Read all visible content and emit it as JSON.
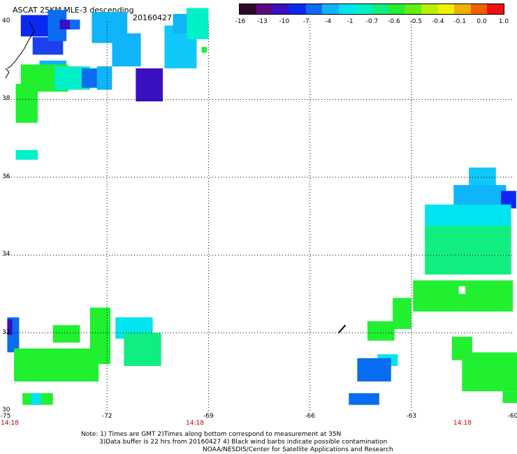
{
  "header": {
    "title": "ASCAT 25KM MLE-3 descending",
    "date": "20160427"
  },
  "colorbar": {
    "colors": [
      "#2a0a2a",
      "#5a0a80",
      "#3a10c0",
      "#0a28f0",
      "#0a6cf0",
      "#10b4f8",
      "#00e4f0",
      "#00f0c8",
      "#10ee80",
      "#20f030",
      "#60f010",
      "#b8f000",
      "#f0f000",
      "#f0b000",
      "#f06000",
      "#f01010"
    ],
    "tick_labels": [
      "-16",
      "-13",
      "-10",
      "-7",
      "-4",
      "-1",
      "-0.7",
      "-0.6",
      "-0.5",
      "-0.4",
      "-0.1",
      "0.0",
      "1.0"
    ]
  },
  "axes": {
    "lat_labels": [
      "40",
      "38",
      "36",
      "34",
      "32",
      "30"
    ],
    "lon_labels": [
      "-75",
      "-72",
      "-69",
      "-66",
      "-63",
      "-60"
    ],
    "time_labels": [
      "14:18",
      "14:18",
      "14:18"
    ]
  },
  "notes": {
    "line1": "Note: 1) Times are GMT 2)Times along bottom correspond to measurement at 35N",
    "line2": "3)Data buffer is 22 hrs from 20160427 4) Black wind barbs indicate possible contamination",
    "line3": "NOAA/NESDIS/Center for Satellite Applications and Research"
  },
  "map_data": {
    "x_range": [
      -75,
      -60
    ],
    "y_range": [
      30,
      40
    ],
    "cells": [
      {
        "lon": -74.55,
        "lat": 39.62,
        "w": 0.95,
        "h": 0.55,
        "v": "#0a28f0"
      },
      {
        "lon": -74.2,
        "lat": 39.15,
        "w": 0.9,
        "h": 0.45,
        "v": "#1a40f0"
      },
      {
        "lon": -73.75,
        "lat": 39.5,
        "w": 0.55,
        "h": 0.8,
        "v": "#0a6cf0"
      },
      {
        "lon": -73.4,
        "lat": 39.8,
        "w": 0.45,
        "h": 0.25,
        "v": "#3a10c0"
      },
      {
        "lon": -73.1,
        "lat": 39.8,
        "w": 0.3,
        "h": 0.25,
        "v": "#0a6cf0"
      },
      {
        "lon": -72.45,
        "lat": 39.45,
        "w": 1.05,
        "h": 0.8,
        "v": "#10b4f8"
      },
      {
        "lon": -71.85,
        "lat": 38.85,
        "w": 0.85,
        "h": 0.85,
        "v": "#10b4f8"
      },
      {
        "lon": -71.15,
        "lat": 37.95,
        "w": 0.8,
        "h": 0.85,
        "v": "#3a10c0"
      },
      {
        "lon": -70.3,
        "lat": 38.8,
        "w": 0.95,
        "h": 1.1,
        "v": "#10c8f8"
      },
      {
        "lon": -70.05,
        "lat": 39.7,
        "w": 0.85,
        "h": 0.5,
        "v": "#10b4f8"
      },
      {
        "lon": -69.65,
        "lat": 39.55,
        "w": 0.65,
        "h": 0.8,
        "v": "#00f0c8"
      },
      {
        "lon": -69.2,
        "lat": 39.2,
        "w": 0.15,
        "h": 0.15,
        "v": "#20f030"
      },
      {
        "lon": -74.0,
        "lat": 38.65,
        "w": 0.8,
        "h": 0.35,
        "v": "#10b4f8"
      },
      {
        "lon": -74.55,
        "lat": 38.2,
        "w": 1.4,
        "h": 0.7,
        "v": "#20f030"
      },
      {
        "lon": -73.55,
        "lat": 38.25,
        "w": 1.05,
        "h": 0.6,
        "v": "#00f0c8"
      },
      {
        "lon": -72.75,
        "lat": 38.3,
        "w": 0.6,
        "h": 0.5,
        "v": "#0a6cf0"
      },
      {
        "lon": -72.3,
        "lat": 38.25,
        "w": 0.45,
        "h": 0.6,
        "v": "#10b4f8"
      },
      {
        "lon": -74.7,
        "lat": 37.4,
        "w": 0.65,
        "h": 1.0,
        "v": "#20f030"
      },
      {
        "lon": -74.7,
        "lat": 36.45,
        "w": 0.65,
        "h": 0.25,
        "v": "#00f0c8"
      },
      {
        "lon": -61.3,
        "lat": 35.7,
        "w": 0.8,
        "h": 0.55,
        "v": "#10c8f8"
      },
      {
        "lon": -61.75,
        "lat": 35.05,
        "w": 1.55,
        "h": 0.75,
        "v": "#10b4f8"
      },
      {
        "lon": -60.35,
        "lat": 35.2,
        "w": 0.45,
        "h": 0.45,
        "v": "#0a28f0"
      },
      {
        "lon": -62.6,
        "lat": 34.5,
        "w": 2.55,
        "h": 0.8,
        "v": "#00e4f0"
      },
      {
        "lon": -62.6,
        "lat": 33.5,
        "w": 2.55,
        "h": 1.25,
        "v": "#10ee80"
      },
      {
        "lon": -62.95,
        "lat": 32.55,
        "w": 2.95,
        "h": 0.8,
        "v": "#20f030"
      },
      {
        "lon": -63.55,
        "lat": 32.1,
        "w": 0.55,
        "h": 0.8,
        "v": "#20f030"
      },
      {
        "lon": -64.3,
        "lat": 31.8,
        "w": 0.8,
        "h": 0.5,
        "v": "#20f030"
      },
      {
        "lon": -64.0,
        "lat": 31.15,
        "w": 0.6,
        "h": 0.3,
        "v": "#00e4f0"
      },
      {
        "lon": -64.6,
        "lat": 30.75,
        "w": 1.0,
        "h": 0.6,
        "v": "#0a6cf0"
      },
      {
        "lon": -61.8,
        "lat": 31.3,
        "w": 0.6,
        "h": 0.6,
        "v": "#20f030"
      },
      {
        "lon": -61.5,
        "lat": 30.5,
        "w": 1.75,
        "h": 1.0,
        "v": "#20f030"
      },
      {
        "lon": -64.85,
        "lat": 30.15,
        "w": 0.9,
        "h": 0.3,
        "v": "#0a6cf0"
      },
      {
        "lon": -60.3,
        "lat": 30.2,
        "w": 0.5,
        "h": 0.3,
        "v": "#20f030"
      },
      {
        "lon": -74.95,
        "lat": 31.5,
        "w": 0.35,
        "h": 0.9,
        "v": "#0a6cf0"
      },
      {
        "lon": -74.95,
        "lat": 31.95,
        "w": 0.15,
        "h": 0.4,
        "v": "#3a10c0"
      },
      {
        "lon": -74.75,
        "lat": 30.75,
        "w": 2.5,
        "h": 0.85,
        "v": "#20f030"
      },
      {
        "lon": -73.6,
        "lat": 31.75,
        "w": 0.8,
        "h": 0.45,
        "v": "#20f030"
      },
      {
        "lon": -72.5,
        "lat": 31.2,
        "w": 0.6,
        "h": 1.45,
        "v": "#20f030"
      },
      {
        "lon": -71.75,
        "lat": 31.85,
        "w": 1.1,
        "h": 0.55,
        "v": "#00e4f0"
      },
      {
        "lon": -71.5,
        "lat": 31.15,
        "w": 1.1,
        "h": 0.85,
        "v": "#10ee80"
      },
      {
        "lon": -74.5,
        "lat": 30.15,
        "w": 0.9,
        "h": 0.3,
        "v": "#20f030"
      },
      {
        "lon": -74.25,
        "lat": 30.15,
        "w": 0.3,
        "h": 0.3,
        "v": "#00e4f0"
      }
    ],
    "white_gaps": [
      {
        "lon": -61.6,
        "lat": 33.0,
        "w": 0.2,
        "h": 0.2
      },
      {
        "lon": -60.5,
        "lat": 32.35,
        "w": 0.2,
        "h": 0.2
      },
      {
        "lon": -61.15,
        "lat": 29.95,
        "w": 0.35,
        "h": 0.5
      }
    ],
    "coast": [
      [
        -74.3,
        40.0
      ],
      [
        -74.15,
        39.75
      ],
      [
        -74.3,
        39.55
      ],
      [
        -74.45,
        39.3
      ],
      [
        -74.7,
        39.0
      ],
      [
        -74.85,
        38.85
      ],
      [
        -74.95,
        38.8
      ]
    ],
    "coast2": [
      [
        -75.0,
        38.8
      ],
      [
        -74.9,
        38.7
      ],
      [
        -75.0,
        38.55
      ]
    ],
    "barb": [
      [
        -65.15,
        32.0
      ],
      [
        -64.95,
        32.2
      ]
    ]
  }
}
